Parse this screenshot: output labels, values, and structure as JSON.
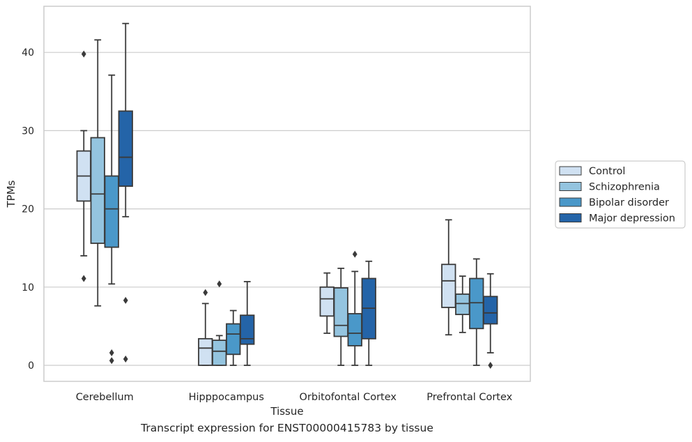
{
  "chart_data": {
    "type": "box",
    "title": "",
    "xlabel": "Tissue",
    "ylabel": "TPMs",
    "ylim": [
      -2,
      45
    ],
    "yticks": [
      0,
      10,
      20,
      30,
      40
    ],
    "grid": "horizontal",
    "legend_position": "right",
    "categories": [
      "Cerebellum",
      "Hipppocampus",
      "Orbitofontal Cortex",
      "Prefrontal Cortex"
    ],
    "series": [
      {
        "name": "Control",
        "color": "#d0e1f2",
        "boxes": [
          {
            "whislo": 14.0,
            "q1": 21.0,
            "med": 24.2,
            "q3": 27.4,
            "whishi": 30.0,
            "fliers": [
              39.8,
              11.1
            ]
          },
          {
            "whislo": 0.0,
            "q1": 0.0,
            "med": 2.2,
            "q3": 3.4,
            "whishi": 7.9,
            "fliers": [
              9.3
            ]
          },
          {
            "whislo": 4.1,
            "q1": 6.3,
            "med": 8.5,
            "q3": 10.0,
            "whishi": 11.8,
            "fliers": []
          },
          {
            "whislo": 3.9,
            "q1": 7.4,
            "med": 10.8,
            "q3": 12.9,
            "whishi": 18.6,
            "fliers": []
          }
        ]
      },
      {
        "name": "Schizophrenia",
        "color": "#94c4df",
        "boxes": [
          {
            "whislo": 7.6,
            "q1": 15.6,
            "med": 21.9,
            "q3": 29.1,
            "whishi": 41.6,
            "fliers": []
          },
          {
            "whislo": 0.0,
            "q1": 0.0,
            "med": 1.8,
            "q3": 3.2,
            "whishi": 3.8,
            "fliers": [
              10.4
            ]
          },
          {
            "whislo": 0.0,
            "q1": 3.7,
            "med": 5.1,
            "q3": 9.9,
            "whishi": 12.4,
            "fliers": []
          },
          {
            "whislo": 4.2,
            "q1": 6.5,
            "med": 7.9,
            "q3": 9.1,
            "whishi": 11.4,
            "fliers": []
          }
        ]
      },
      {
        "name": "Bipolar disorder",
        "color": "#4a98c9",
        "boxes": [
          {
            "whislo": 10.4,
            "q1": 15.1,
            "med": 20.0,
            "q3": 24.2,
            "whishi": 37.1,
            "fliers": [
              1.6,
              0.6
            ]
          },
          {
            "whislo": 0.0,
            "q1": 1.4,
            "med": 4.0,
            "q3": 5.3,
            "whishi": 7.0,
            "fliers": []
          },
          {
            "whislo": 0.0,
            "q1": 2.5,
            "med": 4.1,
            "q3": 6.6,
            "whishi": 12.0,
            "fliers": [
              14.2
            ]
          },
          {
            "whislo": 0.0,
            "q1": 4.7,
            "med": 8.0,
            "q3": 11.1,
            "whishi": 13.6,
            "fliers": []
          }
        ]
      },
      {
        "name": "Major depression",
        "color": "#2464a8",
        "boxes": [
          {
            "whislo": 19.0,
            "q1": 22.9,
            "med": 26.6,
            "q3": 32.5,
            "whishi": 43.7,
            "fliers": [
              8.3,
              0.8
            ]
          },
          {
            "whislo": 0.0,
            "q1": 2.7,
            "med": 3.4,
            "q3": 6.4,
            "whishi": 10.7,
            "fliers": []
          },
          {
            "whislo": 0.0,
            "q1": 3.4,
            "med": 7.3,
            "q3": 11.1,
            "whishi": 13.3,
            "fliers": []
          },
          {
            "whislo": 1.6,
            "q1": 5.3,
            "med": 6.7,
            "q3": 8.8,
            "whishi": 11.7,
            "fliers": [
              0.0
            ]
          }
        ]
      }
    ]
  },
  "caption": "Transcript expression for ENST00000415783 by tissue",
  "colors": {
    "grid": "#cccccc",
    "frame": "#cccccc",
    "line": "#3a3a3a",
    "text": "#262626"
  }
}
